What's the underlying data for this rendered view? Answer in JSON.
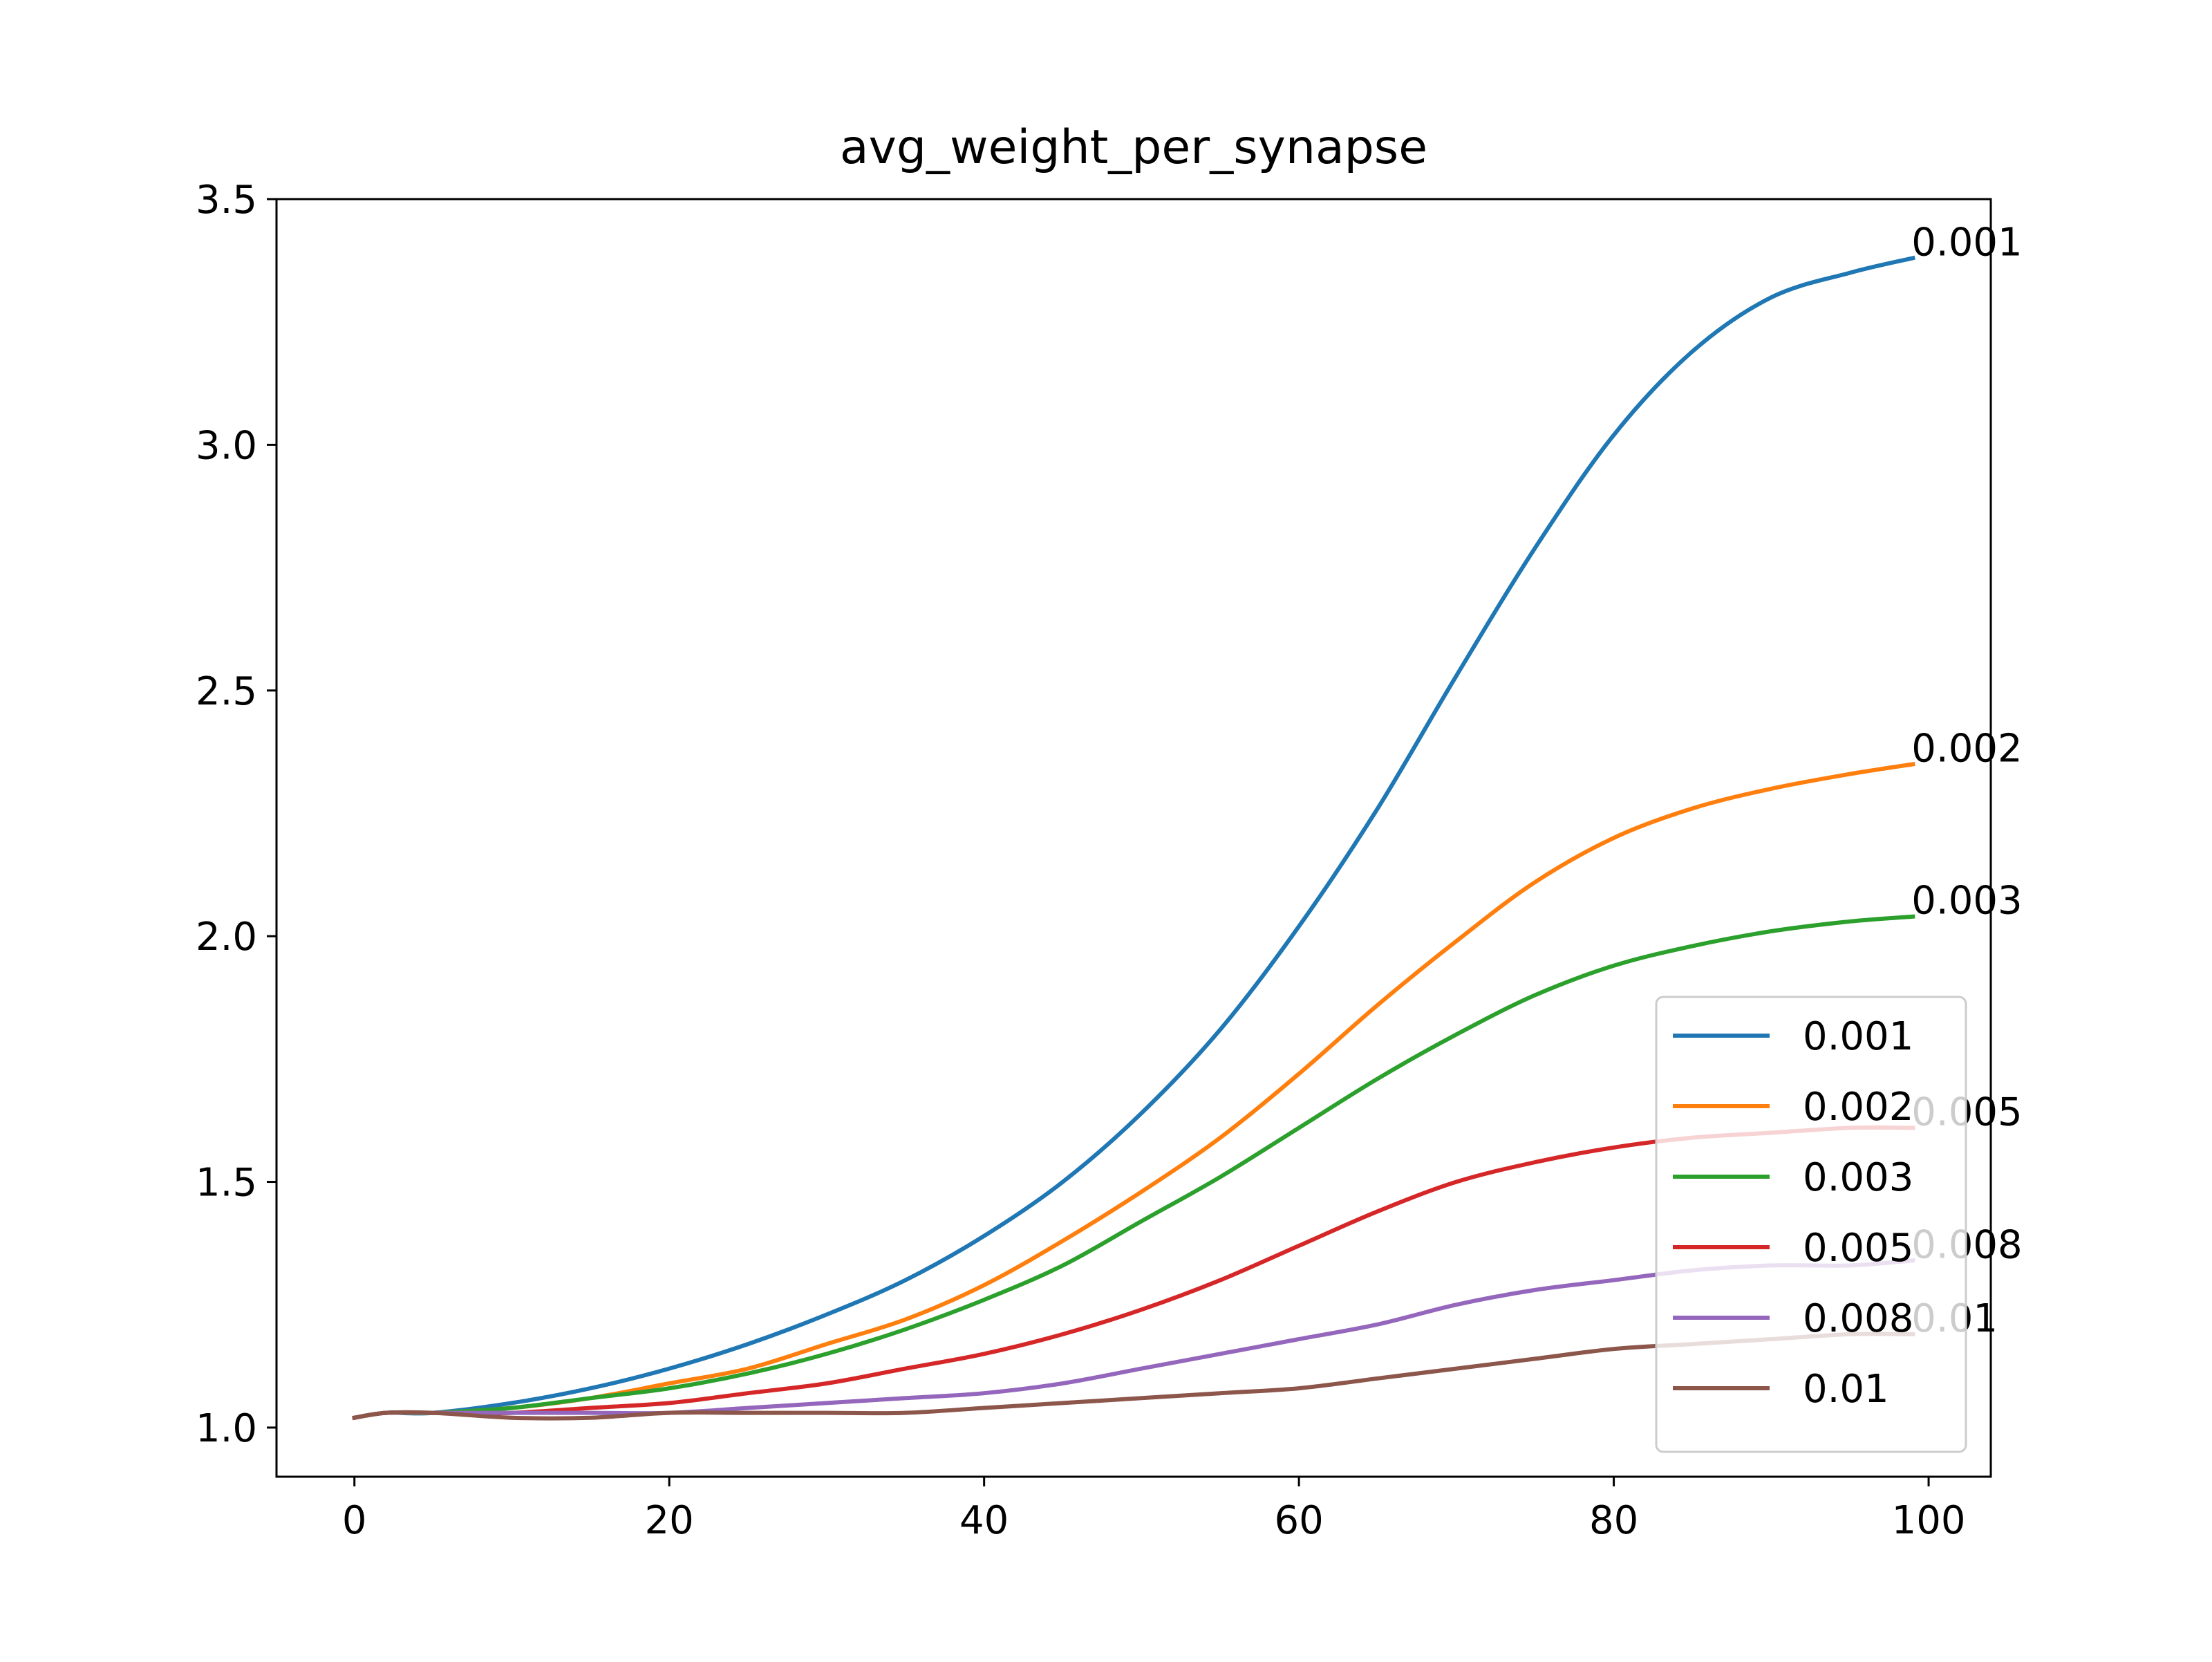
{
  "chart_data": {
    "type": "line",
    "title": "avg_weight_per_synapse",
    "xlabel": "",
    "ylabel": "",
    "xlim": [
      -4.95,
      103.95
    ],
    "ylim": [
      0.9,
      3.5
    ],
    "xticks": [
      0,
      20,
      40,
      60,
      80,
      100
    ],
    "xtick_labels": [
      "0",
      "20",
      "40",
      "60",
      "80",
      "100"
    ],
    "yticks": [
      1.0,
      1.5,
      2.0,
      2.5,
      3.0,
      3.5
    ],
    "ytick_labels": [
      "1.0",
      "1.5",
      "2.0",
      "2.5",
      "3.0",
      "3.5"
    ],
    "grid": false,
    "legend_position": "lower-right",
    "x": [
      0,
      2,
      5,
      10,
      15,
      20,
      25,
      30,
      35,
      40,
      45,
      50,
      55,
      60,
      65,
      70,
      75,
      80,
      85,
      90,
      95,
      99
    ],
    "series": [
      {
        "name": "0.001",
        "color": "#1f77b4",
        "end_label": "0.001",
        "values": [
          1.02,
          1.03,
          1.03,
          1.05,
          1.08,
          1.12,
          1.17,
          1.23,
          1.3,
          1.39,
          1.5,
          1.64,
          1.81,
          2.02,
          2.26,
          2.53,
          2.79,
          3.02,
          3.19,
          3.3,
          3.35,
          3.38
        ]
      },
      {
        "name": "0.002",
        "color": "#ff7f0e",
        "end_label": "0.002",
        "values": [
          1.02,
          1.03,
          1.03,
          1.04,
          1.06,
          1.09,
          1.12,
          1.17,
          1.22,
          1.29,
          1.38,
          1.48,
          1.59,
          1.72,
          1.86,
          1.99,
          2.11,
          2.2,
          2.26,
          2.3,
          2.33,
          2.35
        ]
      },
      {
        "name": "0.003",
        "color": "#2ca02c",
        "end_label": "0.003",
        "values": [
          1.02,
          1.03,
          1.03,
          1.04,
          1.06,
          1.08,
          1.11,
          1.15,
          1.2,
          1.26,
          1.33,
          1.42,
          1.51,
          1.61,
          1.71,
          1.8,
          1.88,
          1.94,
          1.98,
          2.01,
          2.03,
          2.04
        ]
      },
      {
        "name": "0.005",
        "color": "#d62728",
        "end_label": "0.005",
        "values": [
          1.02,
          1.03,
          1.03,
          1.03,
          1.04,
          1.05,
          1.07,
          1.09,
          1.12,
          1.15,
          1.19,
          1.24,
          1.3,
          1.37,
          1.44,
          1.5,
          1.54,
          1.57,
          1.59,
          1.6,
          1.61,
          1.61
        ]
      },
      {
        "name": "0.008",
        "color": "#9467bd",
        "end_label": "0.008",
        "values": [
          1.02,
          1.03,
          1.03,
          1.03,
          1.03,
          1.03,
          1.04,
          1.05,
          1.06,
          1.07,
          1.09,
          1.12,
          1.15,
          1.18,
          1.21,
          1.25,
          1.28,
          1.3,
          1.32,
          1.33,
          1.33,
          1.34
        ]
      },
      {
        "name": "0.01",
        "color": "#8c564b",
        "end_label": "0.01",
        "values": [
          1.02,
          1.03,
          1.03,
          1.02,
          1.02,
          1.03,
          1.03,
          1.03,
          1.03,
          1.04,
          1.05,
          1.06,
          1.07,
          1.08,
          1.1,
          1.12,
          1.14,
          1.16,
          1.17,
          1.18,
          1.19,
          1.19
        ]
      }
    ]
  }
}
